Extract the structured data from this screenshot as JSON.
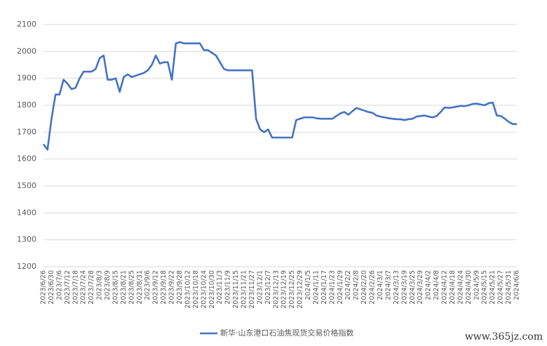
{
  "chart_data": {
    "type": "line",
    "categories": [
      "2023/6/26",
      null,
      "2023/6/30",
      null,
      "2023/7/6",
      null,
      "2023/7/12",
      null,
      "2023/7/18",
      null,
      "2023/7/24",
      null,
      "2023/7/28",
      null,
      "2023/8/3",
      null,
      "2023/8/9",
      null,
      "2023/8/15",
      null,
      "2023/8/21",
      null,
      "2023/8/25",
      null,
      "2023/8/31",
      null,
      "2023/9/6",
      null,
      "2023/9/12",
      null,
      "2023/9/18",
      null,
      "2023/9/22",
      null,
      "2023/9/28",
      null,
      "2023/10/12",
      null,
      "2023/10/18",
      null,
      "2023/10/24",
      null,
      "2023/10/30",
      null,
      "2023/11/3",
      null,
      "2023/11/9",
      null,
      "2023/11/15",
      null,
      "2023/11/21",
      null,
      "2023/11/27",
      null,
      "2023/12/1",
      null,
      "2023/12/7",
      null,
      "2023/12/13",
      null,
      "2023/12/19",
      null,
      "2023/12/25",
      null,
      "2023/12/29",
      null,
      "2024/1/5",
      null,
      "2024/1/11",
      null,
      "2024/1/17",
      null,
      "2024/1/23",
      null,
      "2024/1/29",
      null,
      "2024/2/2",
      null,
      "2024/2/8",
      null,
      "2024/2/20",
      null,
      "2024/2/26",
      null,
      "2024/3/1",
      null,
      "2024/3/7",
      null,
      "2024/3/13",
      null,
      "2024/3/19",
      null,
      "2024/3/25",
      null,
      "2024/3/29",
      null,
      "2024/4/2",
      null,
      "2024/4/8",
      null,
      "2024/4/12",
      null,
      "2024/4/18",
      null,
      "2024/4/24",
      null,
      "2024/4/30",
      null,
      "2024/5/9",
      null,
      "2024/5/15",
      null,
      "2024/5/21",
      null,
      "2024/5/27",
      null,
      "2024/5/31",
      null,
      "2024/6/6"
    ],
    "series": [
      {
        "name": "新华·山东港口石油焦现货交易价格指数",
        "color": "#4472c4",
        "values": [
          1655,
          1635,
          1750,
          1840,
          1840,
          1895,
          1880,
          1860,
          1865,
          1900,
          1925,
          1925,
          1925,
          1935,
          1975,
          1985,
          1895,
          1895,
          1900,
          1850,
          1905,
          1915,
          1905,
          1910,
          1915,
          1920,
          1930,
          1950,
          1985,
          1955,
          1960,
          1960,
          1895,
          2030,
          2035,
          2030,
          2030,
          2030,
          2030,
          2030,
          2005,
          2005,
          1995,
          1985,
          1960,
          1935,
          1930,
          1930,
          1930,
          1930,
          1930,
          1930,
          1930,
          1750,
          1710,
          1700,
          1710,
          1680,
          1680,
          1680,
          1680,
          1680,
          1680,
          1745,
          1750,
          1755,
          1755,
          1755,
          1752,
          1750,
          1750,
          1750,
          1750,
          1760,
          1770,
          1775,
          1765,
          1778,
          1790,
          1785,
          1780,
          1775,
          1772,
          1762,
          1758,
          1755,
          1752,
          1750,
          1748,
          1748,
          1745,
          1748,
          1750,
          1758,
          1760,
          1762,
          1758,
          1755,
          1760,
          1775,
          1792,
          1790,
          1792,
          1795,
          1798,
          1797,
          1800,
          1805,
          1806,
          1803,
          1800,
          1808,
          1810,
          1762,
          1760,
          1750,
          1738,
          1730,
          1730
        ]
      }
    ],
    "ylim": [
      1200,
      2100
    ],
    "yticks": [
      1200,
      1300,
      1400,
      1500,
      1600,
      1700,
      1800,
      1900,
      2000,
      2100
    ],
    "grid": true,
    "legend": "bottom",
    "watermark": "www.365jz.com"
  }
}
